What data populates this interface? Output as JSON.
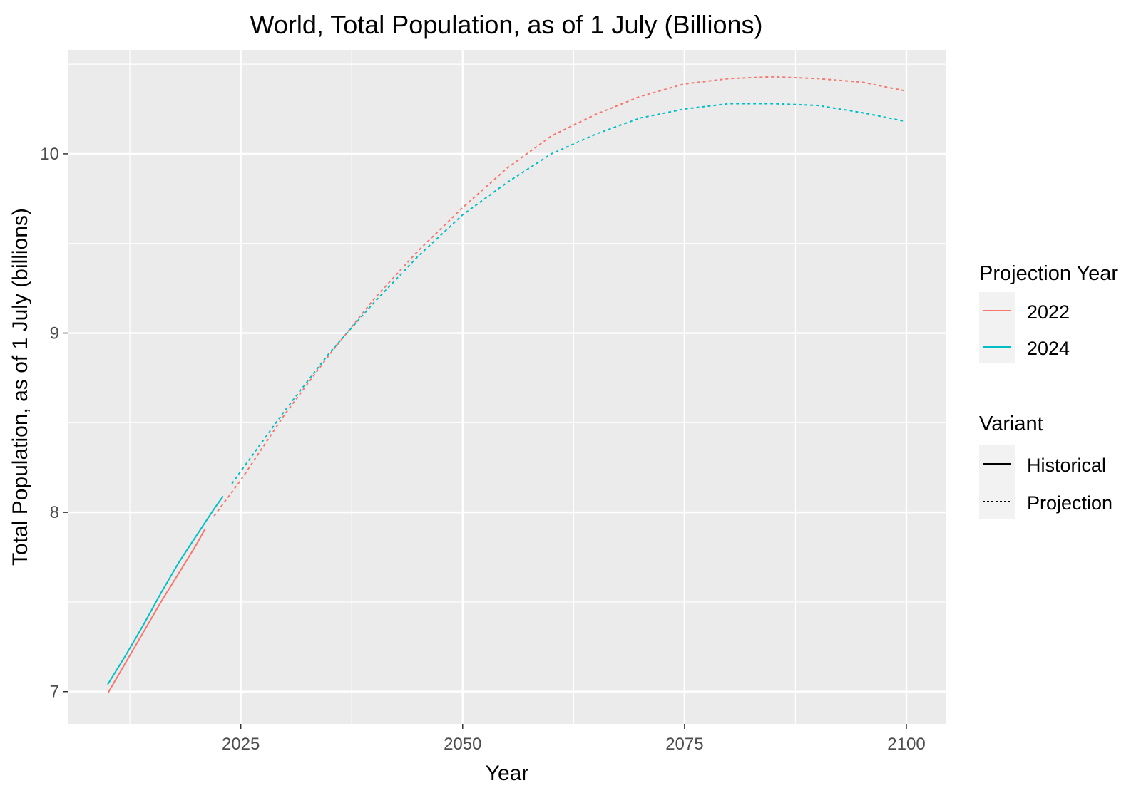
{
  "chart_data": {
    "type": "line",
    "title": "World, Total Population, as of 1 July (Billions)",
    "xlabel": "Year",
    "ylabel": "Total Population, as of 1 July (billions)",
    "xlim": [
      2005.5,
      2104.5
    ],
    "ylim": [
      6.82,
      10.58
    ],
    "x_ticks": [
      2025,
      2050,
      2075,
      2100
    ],
    "y_ticks": [
      7,
      8,
      9,
      10
    ],
    "grid": true,
    "legend_position": "right",
    "colors": {
      "2022": "#f8766d",
      "2024": "#00bfc4",
      "panel": "#ebebeb",
      "grid": "#ffffff"
    },
    "legends": [
      {
        "title": "Projection Year",
        "entries": [
          {
            "label": "2022",
            "key": "2022",
            "style": "solid"
          },
          {
            "label": "2024",
            "key": "2024",
            "style": "solid"
          }
        ]
      },
      {
        "title": "Variant",
        "entries": [
          {
            "label": "Historical",
            "key": "black",
            "style": "solid"
          },
          {
            "label": "Projection",
            "key": "black",
            "style": "dotted"
          }
        ]
      }
    ],
    "series": [
      {
        "name": "2022 Historical",
        "projection_year": "2022",
        "variant": "Historical",
        "x": [
          2010,
          2012,
          2014,
          2016,
          2018,
          2020,
          2021
        ],
        "y": [
          6.99,
          7.16,
          7.33,
          7.5,
          7.66,
          7.82,
          7.91
        ]
      },
      {
        "name": "2022 Projection",
        "projection_year": "2022",
        "variant": "Projection",
        "x": [
          2022,
          2025,
          2030,
          2035,
          2040,
          2045,
          2050,
          2055,
          2060,
          2065,
          2070,
          2075,
          2080,
          2085,
          2090,
          2095,
          2100
        ],
        "y": [
          7.98,
          8.18,
          8.55,
          8.88,
          9.19,
          9.46,
          9.7,
          9.92,
          10.1,
          10.22,
          10.32,
          10.39,
          10.42,
          10.43,
          10.42,
          10.4,
          10.35
        ]
      },
      {
        "name": "2024 Historical",
        "projection_year": "2024",
        "variant": "Historical",
        "x": [
          2010,
          2012,
          2014,
          2016,
          2018,
          2020,
          2022,
          2023
        ],
        "y": [
          7.04,
          7.2,
          7.37,
          7.55,
          7.72,
          7.87,
          8.02,
          8.09
        ]
      },
      {
        "name": "2024 Projection",
        "projection_year": "2024",
        "variant": "Projection",
        "x": [
          2024,
          2025,
          2030,
          2035,
          2040,
          2045,
          2050,
          2055,
          2060,
          2065,
          2070,
          2075,
          2080,
          2085,
          2090,
          2095,
          2100
        ],
        "y": [
          8.16,
          8.23,
          8.57,
          8.89,
          9.17,
          9.43,
          9.66,
          9.84,
          10.0,
          10.11,
          10.2,
          10.25,
          10.28,
          10.28,
          10.27,
          10.23,
          10.18
        ]
      }
    ]
  }
}
